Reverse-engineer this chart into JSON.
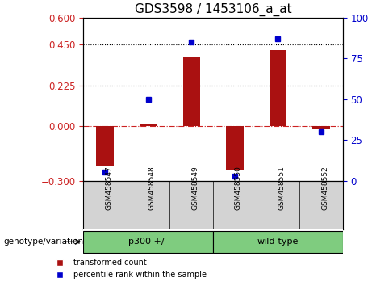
{
  "title": "GDS3598 / 1453106_a_at",
  "samples": [
    "GSM458547",
    "GSM458548",
    "GSM458549",
    "GSM458550",
    "GSM458551",
    "GSM458552"
  ],
  "bar_values": [
    -0.22,
    0.015,
    0.385,
    -0.245,
    0.42,
    -0.015
  ],
  "percentile_values": [
    5,
    50,
    85,
    3,
    87,
    30
  ],
  "groups": [
    {
      "label": "p300 +/-",
      "samples": [
        0,
        1,
        2
      ],
      "color": "#90EE90"
    },
    {
      "label": "wild-type",
      "samples": [
        3,
        4,
        5
      ],
      "color": "#90EE90"
    }
  ],
  "group_boundaries": [
    0,
    3,
    6
  ],
  "ylim_left": [
    -0.3,
    0.6
  ],
  "ylim_right": [
    0,
    100
  ],
  "yticks_left": [
    -0.3,
    0.0,
    0.225,
    0.45,
    0.6
  ],
  "yticks_right": [
    0,
    25,
    50,
    75,
    100
  ],
  "hlines": [
    0.225,
    0.45
  ],
  "hline_zero_color": "#cc2222",
  "hline_style": "dotted",
  "bar_color": "#aa1111",
  "point_color": "#0000cc",
  "bar_width": 0.4,
  "xlabel": "",
  "ylabel_left": "",
  "ylabel_right": "",
  "genotype_label": "genotype/variation",
  "legend_items": [
    {
      "label": "transformed count",
      "color": "#aa1111"
    },
    {
      "label": "percentile rank within the sample",
      "color": "#0000cc"
    }
  ],
  "plot_bg": "#ffffff",
  "outer_bg": "#ffffff",
  "grid_color": "#cccccc",
  "label_area_color": "#d3d3d3",
  "title_fontsize": 11,
  "tick_fontsize": 8.5,
  "axis_label_color_left": "#cc2222",
  "axis_label_color_right": "#0000cc"
}
